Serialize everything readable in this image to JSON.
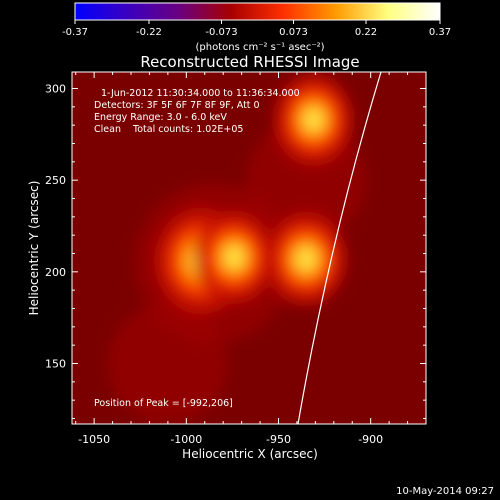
{
  "colorbar": {
    "ticks": [
      "-0.37",
      "-0.22",
      "-0.073",
      "0.073",
      "0.22",
      "0.37"
    ],
    "unit": "(photons cm⁻² s⁻¹ asec⁻²)",
    "range": [
      -0.37,
      0.37
    ],
    "colors": [
      "#0000ff",
      "#3a00c0",
      "#6a0080",
      "#a80000",
      "#ff3000",
      "#ff9a00",
      "#ffff80",
      "#ffffff"
    ]
  },
  "chart_data": {
    "type": "heatmap",
    "title": "Reconstructed RHESSI Image",
    "xlabel": "Heliocentric X (arcsec)",
    "ylabel": "Heliocentric Y (arcsec)",
    "xlim": [
      -1062,
      -870
    ],
    "ylim": [
      117,
      309
    ],
    "xticks": [
      -1050,
      -1000,
      -950,
      -900
    ],
    "yticks": [
      150,
      200,
      250,
      300
    ],
    "annotations": {
      "time": "1-Jun-2012 11:30:34.000 to 11:36:34.000",
      "detectors": "Detectors: 3F 5F 6F 7F 8F 9F, Att 0",
      "energy": "Energy Range: 3.0 - 6.0 keV",
      "clean": "Clean    Total counts: 1.02E+05",
      "peak": "Position of Peak = [-992,206]"
    },
    "sources": [
      {
        "x": -992,
        "y": 206,
        "peak": 1.0
      },
      {
        "x": -974,
        "y": 208,
        "peak": 0.7
      },
      {
        "x": -935,
        "y": 207,
        "peak": 0.72
      },
      {
        "x": -931,
        "y": 283,
        "peak": 0.68
      }
    ]
  },
  "footer": {
    "date": "10-May-2014 09:27"
  }
}
